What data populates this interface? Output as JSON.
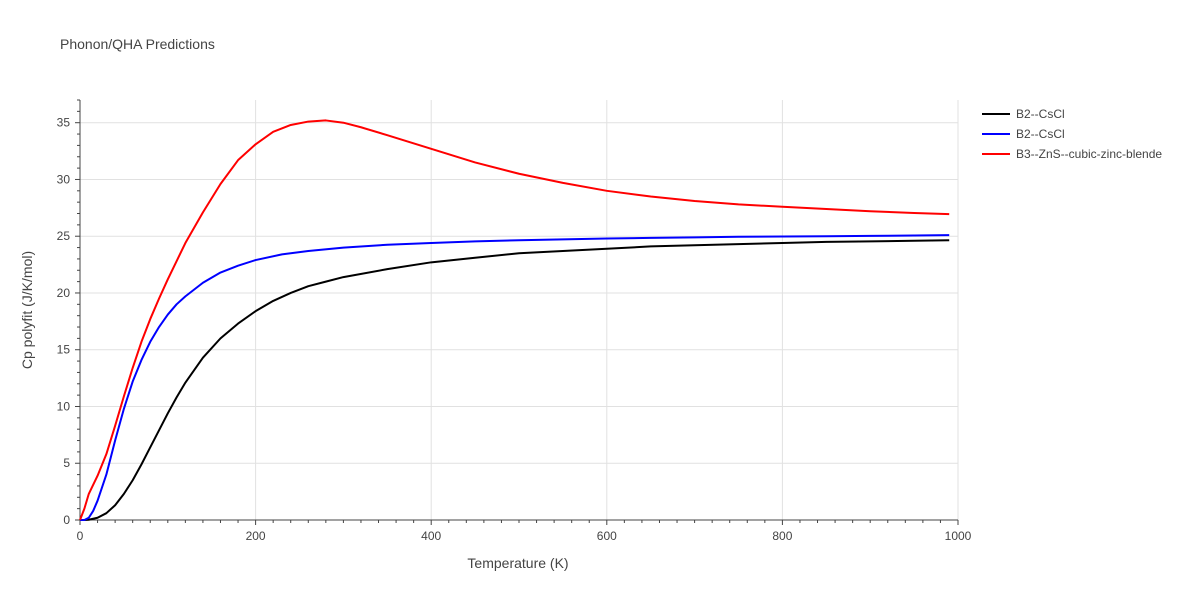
{
  "chart_data": {
    "type": "line",
    "title": "Phonon/QHA Predictions",
    "xlabel": "Temperature (K)",
    "ylabel": "Cp polyfit (J/K/mol)",
    "xlim": [
      0,
      1000
    ],
    "ylim": [
      0,
      37
    ],
    "xticks": [
      0,
      200,
      400,
      600,
      800,
      1000
    ],
    "yticks": [
      0,
      5,
      10,
      15,
      20,
      25,
      30,
      35
    ],
    "grid": true,
    "legend_position": "top-right",
    "series": [
      {
        "name": "B2--CsCl",
        "color": "#000000",
        "x": [
          0,
          5,
          10,
          20,
          30,
          40,
          50,
          60,
          70,
          80,
          90,
          100,
          110,
          120,
          140,
          160,
          180,
          200,
          220,
          240,
          260,
          280,
          300,
          350,
          400,
          450,
          500,
          550,
          600,
          650,
          700,
          750,
          800,
          850,
          900,
          950,
          990
        ],
        "y": [
          0,
          0,
          0.02,
          0.2,
          0.6,
          1.3,
          2.3,
          3.5,
          4.9,
          6.4,
          7.9,
          9.4,
          10.8,
          12.1,
          14.3,
          16.0,
          17.3,
          18.4,
          19.3,
          20.0,
          20.6,
          21.0,
          21.4,
          22.1,
          22.7,
          23.1,
          23.5,
          23.7,
          23.9,
          24.1,
          24.2,
          24.3,
          24.4,
          24.5,
          24.55,
          24.6,
          24.65
        ]
      },
      {
        "name": "B2--CsCl",
        "color": "#0000ff",
        "x": [
          0,
          5,
          10,
          15,
          20,
          30,
          40,
          50,
          60,
          70,
          80,
          90,
          100,
          110,
          120,
          140,
          160,
          180,
          200,
          230,
          260,
          300,
          350,
          400,
          450,
          500,
          550,
          600,
          650,
          700,
          750,
          800,
          850,
          900,
          950,
          990
        ],
        "y": [
          0,
          0,
          0.2,
          0.8,
          1.7,
          4.0,
          7.0,
          9.8,
          12.2,
          14.1,
          15.7,
          17.0,
          18.1,
          19.0,
          19.7,
          20.9,
          21.8,
          22.4,
          22.9,
          23.4,
          23.7,
          24.0,
          24.25,
          24.4,
          24.55,
          24.65,
          24.72,
          24.8,
          24.85,
          24.9,
          24.95,
          24.98,
          25.0,
          25.03,
          25.06,
          25.1
        ]
      },
      {
        "name": "B3--ZnS--cubic-zinc-blende",
        "color": "#ff0000",
        "x": [
          0,
          5,
          10,
          20,
          30,
          40,
          50,
          60,
          70,
          80,
          90,
          100,
          110,
          120,
          140,
          160,
          180,
          200,
          220,
          240,
          260,
          280,
          300,
          320,
          350,
          400,
          450,
          500,
          550,
          600,
          650,
          700,
          750,
          800,
          850,
          900,
          950,
          990
        ],
        "y": [
          0,
          1.0,
          2.3,
          3.9,
          5.8,
          8.3,
          10.9,
          13.4,
          15.7,
          17.7,
          19.5,
          21.2,
          22.8,
          24.4,
          27.1,
          29.6,
          31.7,
          33.1,
          34.2,
          34.8,
          35.1,
          35.2,
          35.0,
          34.6,
          33.9,
          32.7,
          31.5,
          30.5,
          29.7,
          29.0,
          28.5,
          28.1,
          27.8,
          27.6,
          27.4,
          27.2,
          27.05,
          26.95
        ]
      }
    ]
  }
}
